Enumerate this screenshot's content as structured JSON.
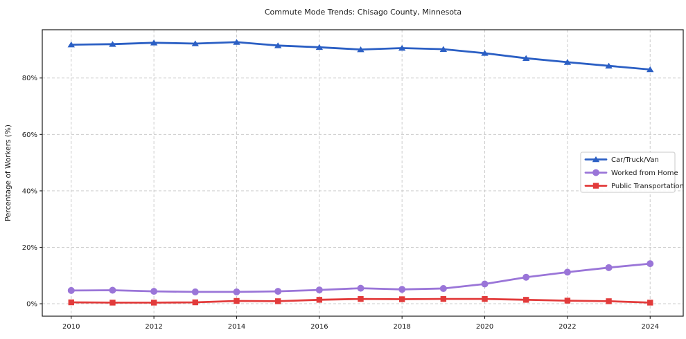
{
  "figure": {
    "background": "#ffffff",
    "frame_color": "#1a1a1a",
    "grid_color": "#cccccc",
    "legend_border_color": "#c8c8c8"
  },
  "chart_data": {
    "type": "line",
    "title": "Commute Mode Trends: Chisago County, Minnesota",
    "xlabel": "",
    "ylabel": "Percentage of Workers (%)",
    "x": [
      2010,
      2011,
      2012,
      2013,
      2014,
      2015,
      2016,
      2017,
      2018,
      2019,
      2020,
      2021,
      2022,
      2023,
      2024
    ],
    "series": [
      {
        "name": "Car/Truck/Van",
        "color": "#2b5fc4",
        "marker": "triangle",
        "values": [
          91.8,
          92.0,
          92.5,
          92.2,
          92.7,
          91.5,
          90.9,
          90.1,
          90.6,
          90.2,
          88.8,
          87.0,
          85.6,
          84.3,
          83.0
        ]
      },
      {
        "name": "Worked from Home",
        "color": "#9a75d8",
        "marker": "circle",
        "values": [
          4.7,
          4.8,
          4.4,
          4.2,
          4.2,
          4.4,
          4.9,
          5.5,
          5.1,
          5.4,
          7.0,
          9.4,
          11.2,
          12.8,
          14.2
        ]
      },
      {
        "name": "Public Transportation",
        "color": "#e23b3b",
        "marker": "square",
        "values": [
          0.5,
          0.4,
          0.4,
          0.5,
          1.0,
          0.9,
          1.4,
          1.7,
          1.6,
          1.7,
          1.7,
          1.4,
          1.1,
          0.9,
          0.4
        ]
      }
    ],
    "x_ticks": [
      2010,
      2012,
      2014,
      2016,
      2018,
      2020,
      2022,
      2024
    ],
    "x_tick_labels": [
      "2010",
      "2012",
      "2014",
      "2016",
      "2018",
      "2020",
      "2022",
      "2024"
    ],
    "y_ticks": [
      0,
      20,
      40,
      60,
      80
    ],
    "y_tick_labels": [
      "0%",
      "20%",
      "40%",
      "60%",
      "80%"
    ],
    "xlim": [
      2009.3,
      2024.8
    ],
    "ylim": [
      -4.4,
      97.1
    ],
    "grid": true,
    "grid_style": "dashed",
    "legend_position": "center-right"
  }
}
